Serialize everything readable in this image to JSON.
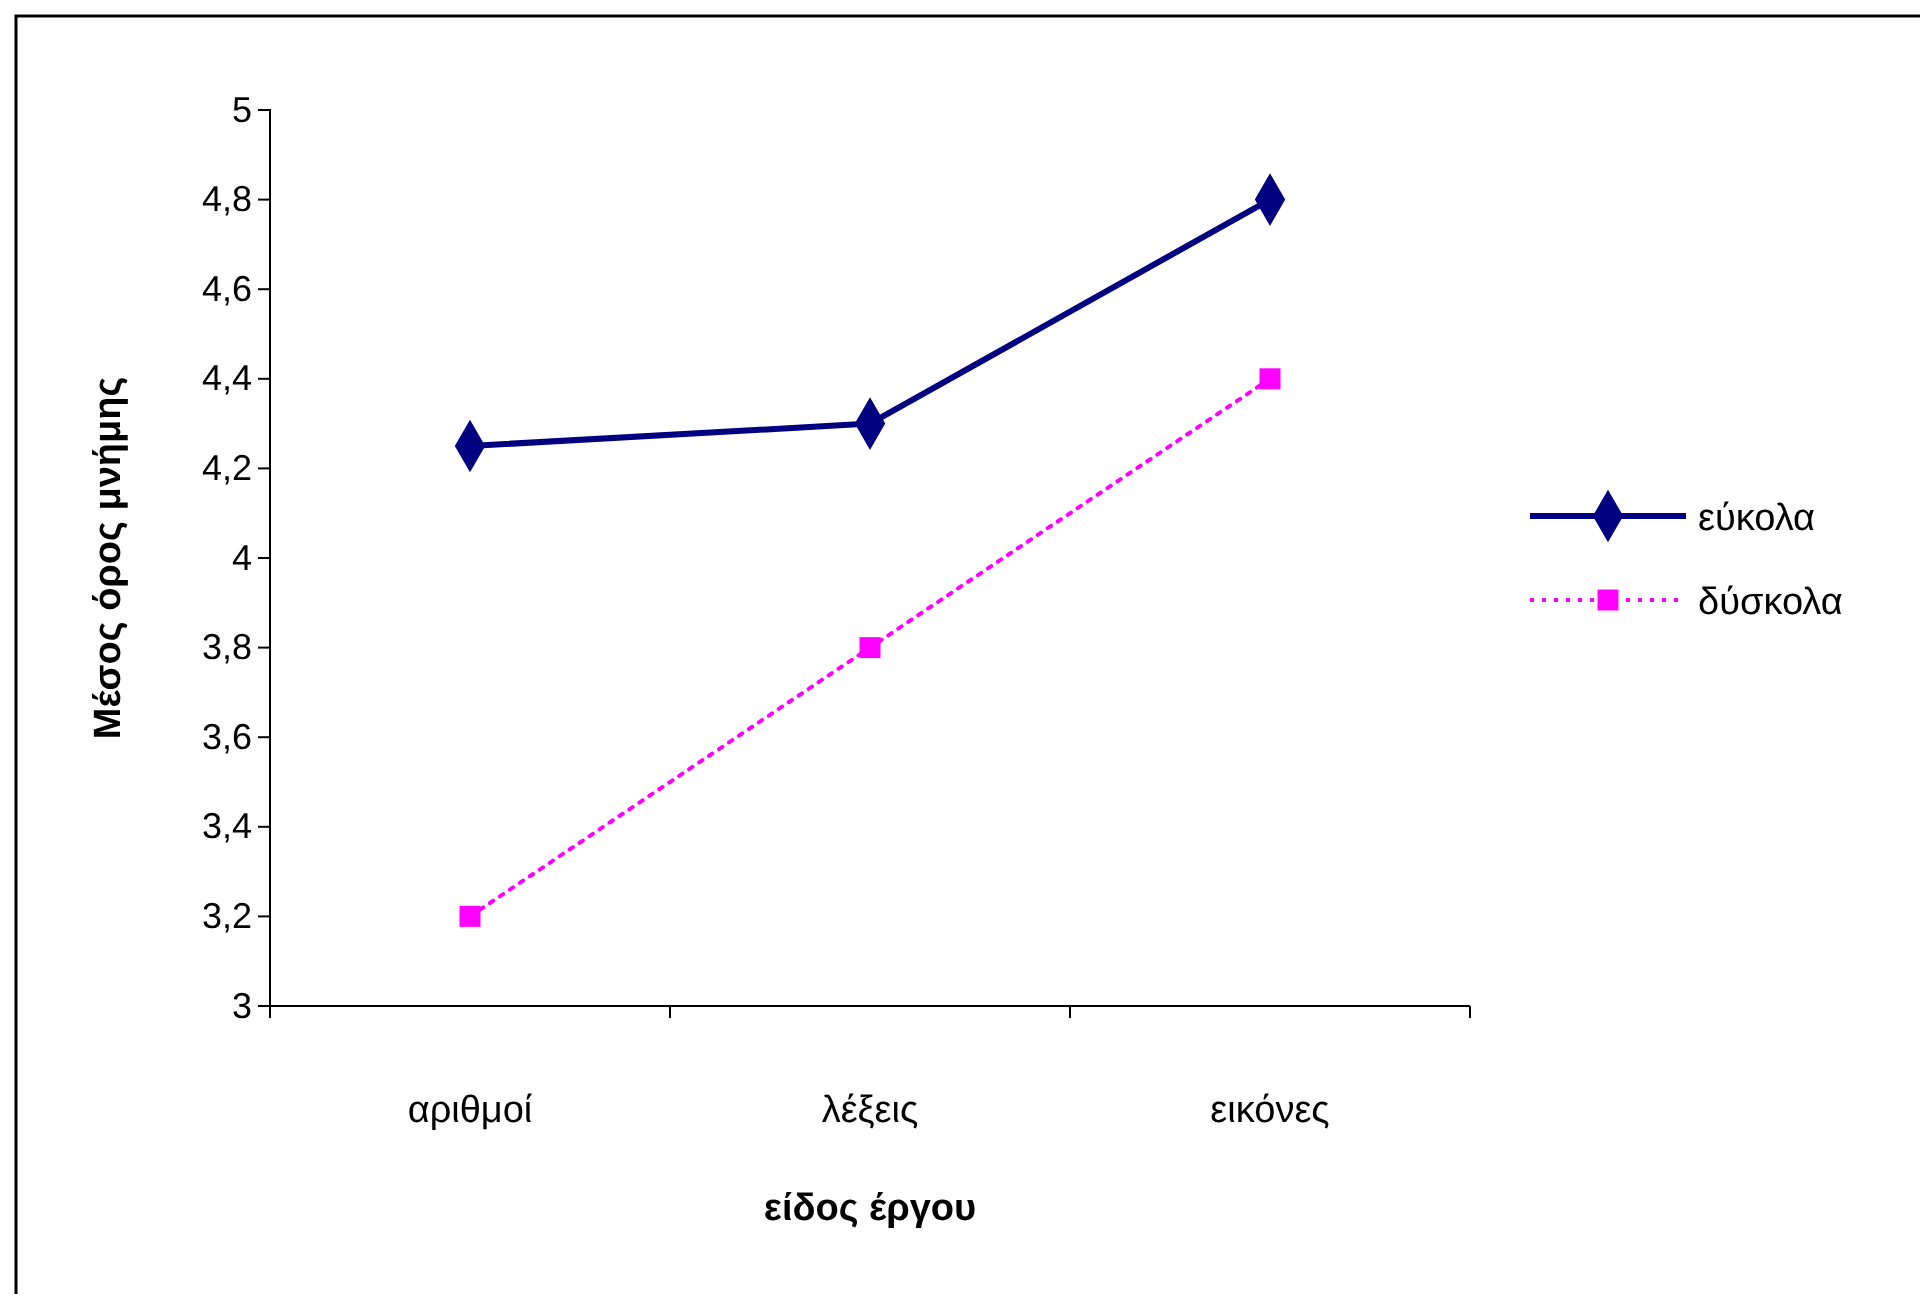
{
  "chart_data": {
    "type": "line",
    "xlabel": "είδος έργου",
    "ylabel": "Μέσος όρος μνήμης",
    "categories": [
      "αριθμοί",
      "λέξεις",
      "εικόνες"
    ],
    "series": [
      {
        "name": "εύκολα",
        "color": "#000080",
        "values": [
          4.25,
          4.3,
          4.8
        ],
        "marker": "diamond",
        "line_style": "solid"
      },
      {
        "name": "δύσκολα",
        "color": "#ff00ff",
        "values": [
          3.2,
          3.8,
          4.4
        ],
        "marker": "square",
        "line_style": "dotted"
      }
    ],
    "ylim": [
      3,
      5
    ],
    "yticks": [
      {
        "value": 3,
        "label": "3"
      },
      {
        "value": 3.2,
        "label": "3,2"
      },
      {
        "value": 3.4,
        "label": "3,4"
      },
      {
        "value": 3.6,
        "label": "3,6"
      },
      {
        "value": 3.8,
        "label": "3,8"
      },
      {
        "value": 4,
        "label": "4"
      },
      {
        "value": 4.2,
        "label": "4,2"
      },
      {
        "value": 4.4,
        "label": "4,4"
      },
      {
        "value": 4.6,
        "label": "4,6"
      },
      {
        "value": 4.8,
        "label": "4,8"
      },
      {
        "value": 5,
        "label": "5"
      }
    ],
    "grid": false,
    "legend": "right"
  }
}
